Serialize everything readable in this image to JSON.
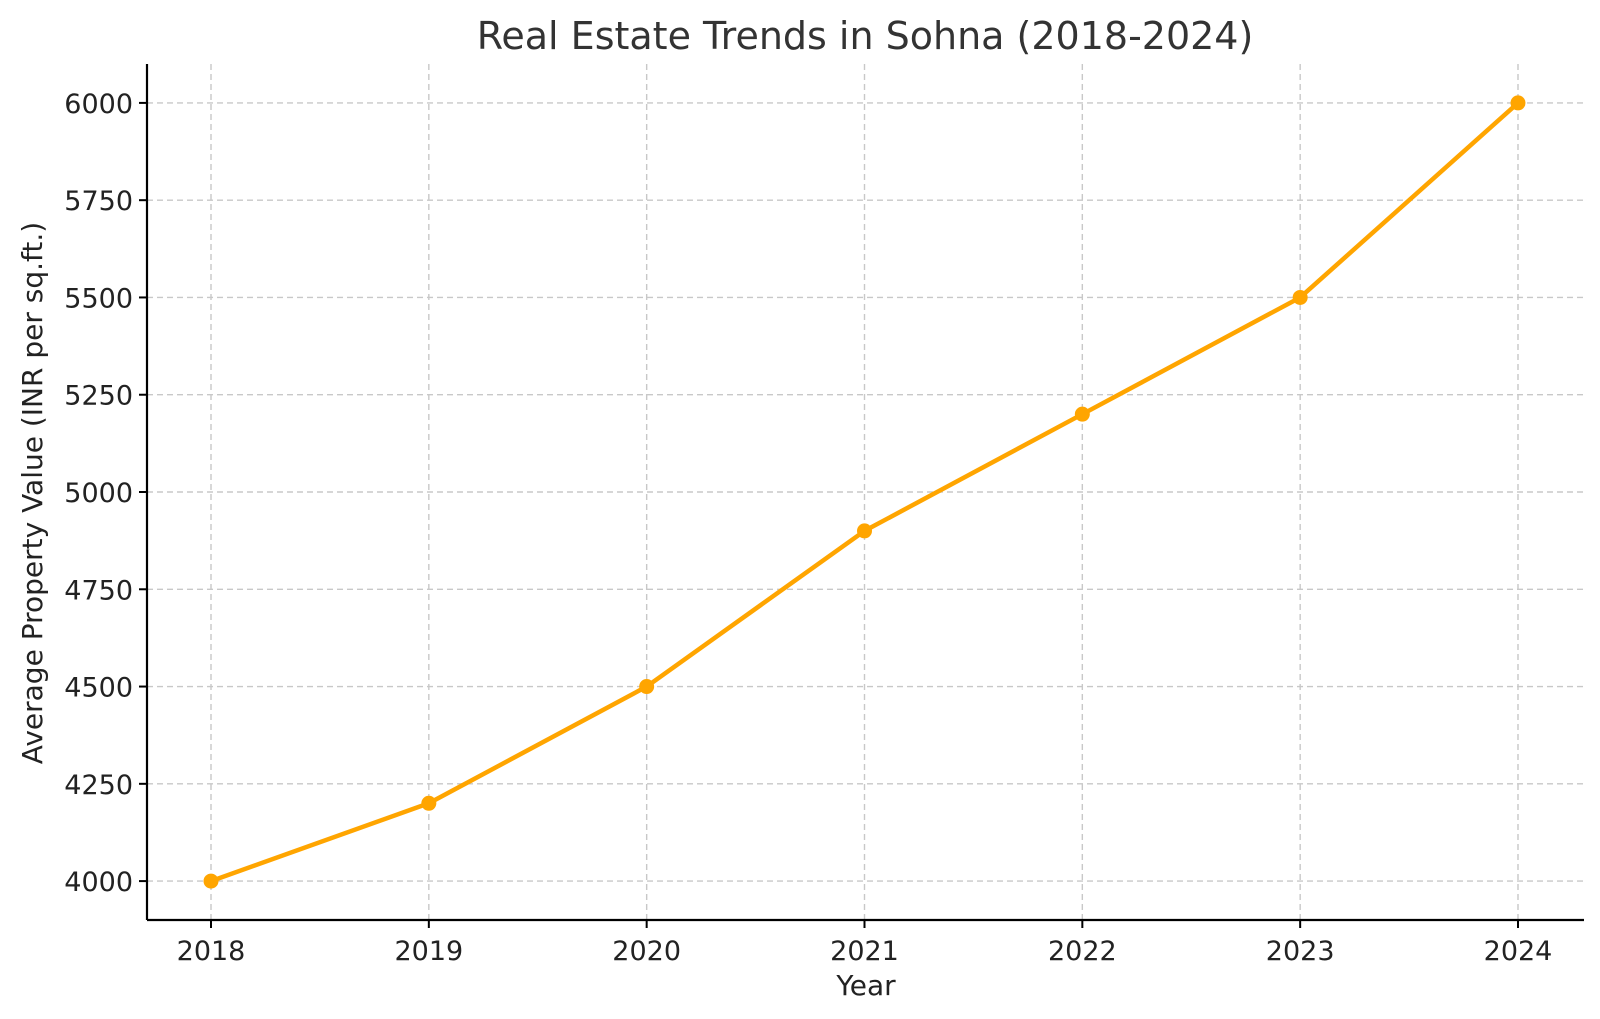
{
  "chart_data": {
    "type": "line",
    "title": "Real Estate Trends in Sohna (2018-2024)",
    "xlabel": "Year",
    "ylabel": "Average Property Value (INR per sq.ft.)",
    "x": [
      "2018",
      "2019",
      "2020",
      "2021",
      "2022",
      "2023",
      "2024"
    ],
    "series": [
      {
        "values": [
          4000,
          4200,
          4500,
          4900,
          5200,
          5500,
          6000
        ],
        "color": "#FFA500",
        "marker": "circle"
      }
    ],
    "yticks": [
      4000,
      4250,
      4500,
      4750,
      5000,
      5250,
      5500,
      5750,
      6000
    ],
    "ylim": [
      3900,
      6100
    ],
    "grid": true,
    "legend": false
  }
}
